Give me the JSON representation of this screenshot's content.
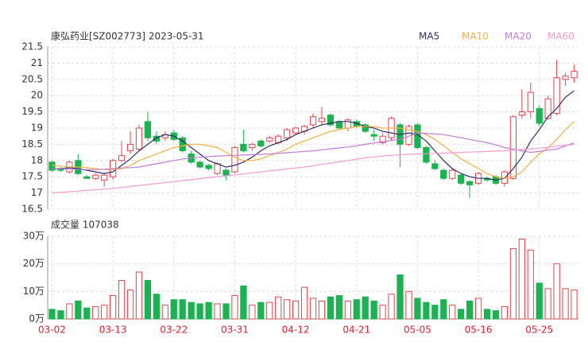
{
  "chart_data": {
    "type": "candlestick",
    "title": "康弘药业[SZ002773] 2023-05-31",
    "volume_title": "成交量 107038",
    "up_color": "#e8434d",
    "down_color": "#19b34f",
    "categories": [
      "03-02",
      null,
      null,
      null,
      null,
      null,
      null,
      "03-13",
      null,
      null,
      null,
      null,
      null,
      null,
      "03-22",
      null,
      null,
      null,
      null,
      null,
      null,
      "03-31",
      null,
      null,
      null,
      null,
      null,
      null,
      "04-12",
      null,
      null,
      null,
      null,
      null,
      null,
      "04-21",
      null,
      null,
      null,
      null,
      null,
      null,
      "05-05",
      null,
      null,
      null,
      null,
      null,
      null,
      "05-16",
      null,
      null,
      null,
      null,
      null,
      null,
      "05-25",
      null,
      null,
      null,
      null
    ],
    "open": [
      17.95,
      17.75,
      17.65,
      18.0,
      17.5,
      17.45,
      17.4,
      17.5,
      18.0,
      18.3,
      18.35,
      19.2,
      18.75,
      18.7,
      18.85,
      18.7,
      18.2,
      17.95,
      17.85,
      17.6,
      17.7,
      17.65,
      18.5,
      18.4,
      18.6,
      18.6,
      18.55,
      18.7,
      18.85,
      18.9,
      19.1,
      19.2,
      19.4,
      19.2,
      19.0,
      19.2,
      19.1,
      18.8,
      18.55,
      18.7,
      19.1,
      18.5,
      19.1,
      18.4,
      17.9,
      17.7,
      17.45,
      17.55,
      17.35,
      17.3,
      17.45,
      17.5,
      17.3,
      17.45,
      19.4,
      19.5,
      19.6,
      19.3,
      19.45,
      20.5,
      20.55
    ],
    "high": [
      18.0,
      17.8,
      18.0,
      18.2,
      17.55,
      17.6,
      17.6,
      18.05,
      18.6,
      18.9,
      19.1,
      19.5,
      18.9,
      18.9,
      18.95,
      18.75,
      18.3,
      18.0,
      17.9,
      17.95,
      17.75,
      18.45,
      18.95,
      18.55,
      18.65,
      18.75,
      18.8,
      19.0,
      19.05,
      19.1,
      19.45,
      19.65,
      19.45,
      19.25,
      19.3,
      19.25,
      19.15,
      18.95,
      18.85,
      19.35,
      19.15,
      19.1,
      19.15,
      18.45,
      18.0,
      17.75,
      17.75,
      17.6,
      17.4,
      17.65,
      17.5,
      17.55,
      17.7,
      19.4,
      20.2,
      20.4,
      19.7,
      20.0,
      21.1,
      20.7,
      20.95
    ],
    "low": [
      17.65,
      17.65,
      17.6,
      17.55,
      17.45,
      17.4,
      17.2,
      17.4,
      17.95,
      18.2,
      18.3,
      18.6,
      18.5,
      18.6,
      18.6,
      18.25,
      17.9,
      17.75,
      17.7,
      17.55,
      17.4,
      17.6,
      18.25,
      18.3,
      18.4,
      18.55,
      18.5,
      18.6,
      18.8,
      18.8,
      19.0,
      19.1,
      19.05,
      18.95,
      18.9,
      19.0,
      18.85,
      18.6,
      18.5,
      18.6,
      17.8,
      18.45,
      18.35,
      17.9,
      17.7,
      17.4,
      17.4,
      17.25,
      16.85,
      17.25,
      17.35,
      17.25,
      17.2,
      17.4,
      19.3,
      19.3,
      19.05,
      19.25,
      19.4,
      20.3,
      20.4
    ],
    "close": [
      17.7,
      17.7,
      17.95,
      17.6,
      17.45,
      17.55,
      17.55,
      18.0,
      18.15,
      18.5,
      19.0,
      18.7,
      18.6,
      18.8,
      18.65,
      18.3,
      17.95,
      17.8,
      17.75,
      17.9,
      17.55,
      18.4,
      18.3,
      18.5,
      18.45,
      18.7,
      18.75,
      18.95,
      19.0,
      19.05,
      19.35,
      19.3,
      19.1,
      19.0,
      19.25,
      19.05,
      18.9,
      18.75,
      18.75,
      19.3,
      18.5,
      19.05,
      18.4,
      17.95,
      17.75,
      17.45,
      17.7,
      17.3,
      17.25,
      17.6,
      17.4,
      17.3,
      17.65,
      19.35,
      19.5,
      20.1,
      19.15,
      19.9,
      20.55,
      20.6,
      20.75
    ],
    "volume": [
      3.5,
      3,
      5.5,
      6.5,
      4,
      4.5,
      5,
      8.5,
      14,
      10.5,
      17,
      14,
      9,
      5,
      7,
      7,
      6,
      5.5,
      6,
      5.5,
      5.5,
      8.5,
      12,
      5,
      6,
      6,
      8,
      7,
      6.5,
      11.5,
      7.5,
      6.5,
      8,
      8.5,
      6.5,
      7,
      8,
      6.5,
      5,
      9,
      16,
      10,
      7.5,
      6,
      5,
      7,
      5,
      3.5,
      6.5,
      7.5,
      3.5,
      3,
      4.5,
      25.5,
      29,
      25,
      13,
      11,
      20,
      11,
      10.5
    ],
    "series": [
      {
        "name": "MA5",
        "color": "#2b2f63",
        "values": [
          17.75,
          17.75,
          17.78,
          17.75,
          17.7,
          17.65,
          17.6,
          17.65,
          17.85,
          18.05,
          18.3,
          18.5,
          18.7,
          18.8,
          18.75,
          18.6,
          18.4,
          18.2,
          18.0,
          17.9,
          17.8,
          17.85,
          17.95,
          18.1,
          18.3,
          18.45,
          18.55,
          18.65,
          18.8,
          18.9,
          19.0,
          19.1,
          19.15,
          19.2,
          19.2,
          19.15,
          19.05,
          19.0,
          18.9,
          18.85,
          18.8,
          18.85,
          18.8,
          18.6,
          18.3,
          18.0,
          17.75,
          17.6,
          17.5,
          17.45,
          17.45,
          17.4,
          17.45,
          17.75,
          18.1,
          18.6,
          18.95,
          19.35,
          19.6,
          19.95,
          20.15
        ]
      },
      {
        "name": "MA10",
        "color": "#f5b041",
        "values": [
          17.85,
          17.83,
          17.8,
          17.8,
          17.78,
          17.75,
          17.72,
          17.72,
          17.75,
          17.85,
          18.0,
          18.1,
          18.2,
          18.3,
          18.4,
          18.45,
          18.5,
          18.5,
          18.45,
          18.4,
          18.25,
          18.1,
          18.0,
          18.0,
          18.05,
          18.15,
          18.25,
          18.35,
          18.5,
          18.6,
          18.7,
          18.8,
          18.9,
          18.95,
          19.0,
          19.05,
          19.05,
          19.05,
          19.0,
          19.0,
          19.0,
          18.95,
          18.9,
          18.8,
          18.65,
          18.45,
          18.25,
          18.05,
          17.9,
          17.75,
          17.6,
          17.5,
          17.45,
          17.5,
          17.65,
          17.95,
          18.2,
          18.4,
          18.65,
          18.95,
          19.2
        ]
      },
      {
        "name": "MA20",
        "color": "#c27bd8",
        "values": [
          17.75,
          17.75,
          17.74,
          17.73,
          17.72,
          17.72,
          17.73,
          17.75,
          17.77,
          17.78,
          17.8,
          17.85,
          17.9,
          17.95,
          18.0,
          18.05,
          18.08,
          18.1,
          18.12,
          18.14,
          18.15,
          18.16,
          18.17,
          18.18,
          18.19,
          18.2,
          18.22,
          18.24,
          18.26,
          18.28,
          18.3,
          18.33,
          18.36,
          18.39,
          18.42,
          18.45,
          18.5,
          18.54,
          18.58,
          18.62,
          18.65,
          18.75,
          18.85,
          18.83,
          18.82,
          18.8,
          18.75,
          18.7,
          18.65,
          18.6,
          18.55,
          18.48,
          18.4,
          18.35,
          18.3,
          18.25,
          18.28,
          18.32,
          18.35,
          18.45,
          18.55
        ]
      },
      {
        "name": "MA60",
        "color": "#f49ad2",
        "values": [
          17.0,
          17.02,
          17.04,
          17.06,
          17.08,
          17.1,
          17.12,
          17.14,
          17.17,
          17.2,
          17.23,
          17.26,
          17.29,
          17.32,
          17.35,
          17.38,
          17.41,
          17.44,
          17.47,
          17.5,
          17.53,
          17.56,
          17.59,
          17.62,
          17.65,
          17.68,
          17.71,
          17.74,
          17.77,
          17.8,
          17.84,
          17.88,
          17.92,
          17.96,
          18.0,
          18.04,
          18.08,
          18.11,
          18.14,
          18.16,
          18.18,
          18.19,
          18.2,
          18.21,
          18.22,
          18.23,
          18.24,
          18.25,
          18.26,
          18.27,
          18.28,
          18.29,
          18.3,
          18.32,
          18.34,
          18.36,
          18.38,
          18.41,
          18.44,
          18.47,
          18.5
        ]
      }
    ],
    "ylim": [
      16.5,
      21.5
    ],
    "yticks": [
      16.5,
      17,
      17.5,
      18,
      18.5,
      19,
      19.5,
      20,
      20.5,
      21,
      21.5
    ],
    "vlim": [
      0,
      30
    ],
    "vticks": [
      {
        "value": 0,
        "label": "0万"
      },
      {
        "value": 10,
        "label": "10万"
      },
      {
        "value": 20,
        "label": "20万"
      },
      {
        "value": 30,
        "label": "30万"
      }
    ],
    "grid": true
  }
}
